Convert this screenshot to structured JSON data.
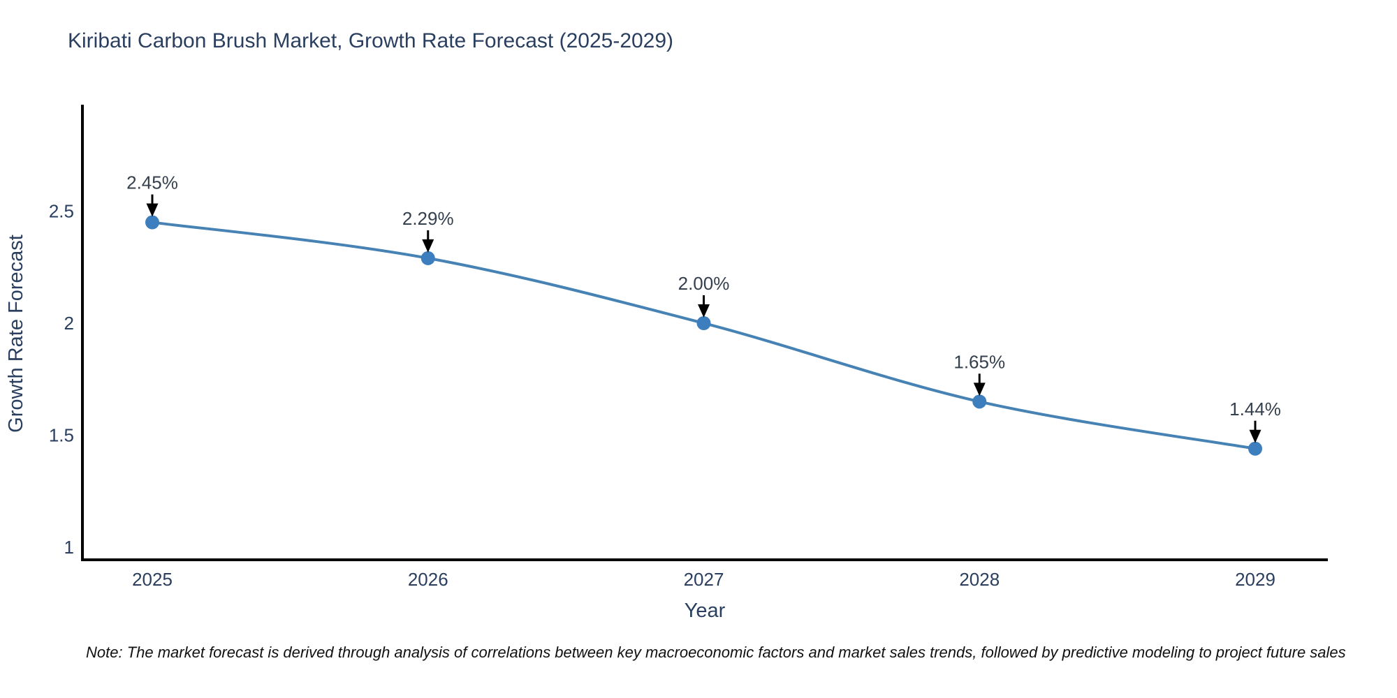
{
  "chart_data": {
    "type": "line",
    "title": "Kiribati Carbon Brush Market, Growth Rate Forecast (2025-2029)",
    "xlabel": "Year",
    "ylabel": "Growth Rate Forecast",
    "x": [
      2025,
      2026,
      2027,
      2028,
      2029
    ],
    "xtick_labels": [
      "2025",
      "2026",
      "2027",
      "2028",
      "2029"
    ],
    "series": [
      {
        "name": "Growth Rate Forecast",
        "values": [
          2.45,
          2.29,
          2.0,
          1.65,
          1.44
        ],
        "point_labels": [
          "2.45%",
          "2.29%",
          "2.00%",
          "1.65%",
          "1.44%"
        ]
      }
    ],
    "yticks": [
      1,
      1.5,
      2,
      2.5
    ],
    "ytick_labels": [
      "1",
      "1.5",
      "2",
      "2.5"
    ],
    "ylim": [
      0.94,
      2.97
    ],
    "xlim": [
      2024.75,
      2029.26
    ],
    "grid": false,
    "legend_position": "none",
    "line_shape": "spline",
    "annotation_style": "value-labels-with-down-arrows",
    "colors": {
      "line": "#4682b4",
      "marker": "#3d7ebe",
      "axis_line": "#000000",
      "title_text": "#2a3f5f",
      "axis_title_text": "#2a3f5f",
      "tick_text": "#2a3f5f",
      "annotation_text": "#35404e",
      "arrow": "#000000",
      "note_text": "#111111",
      "background": "#ffffff"
    },
    "note": "Note: The market forecast is derived through analysis of correlations between key macroeconomic factors and market sales trends, followed by predictive modeling to project future sales"
  }
}
